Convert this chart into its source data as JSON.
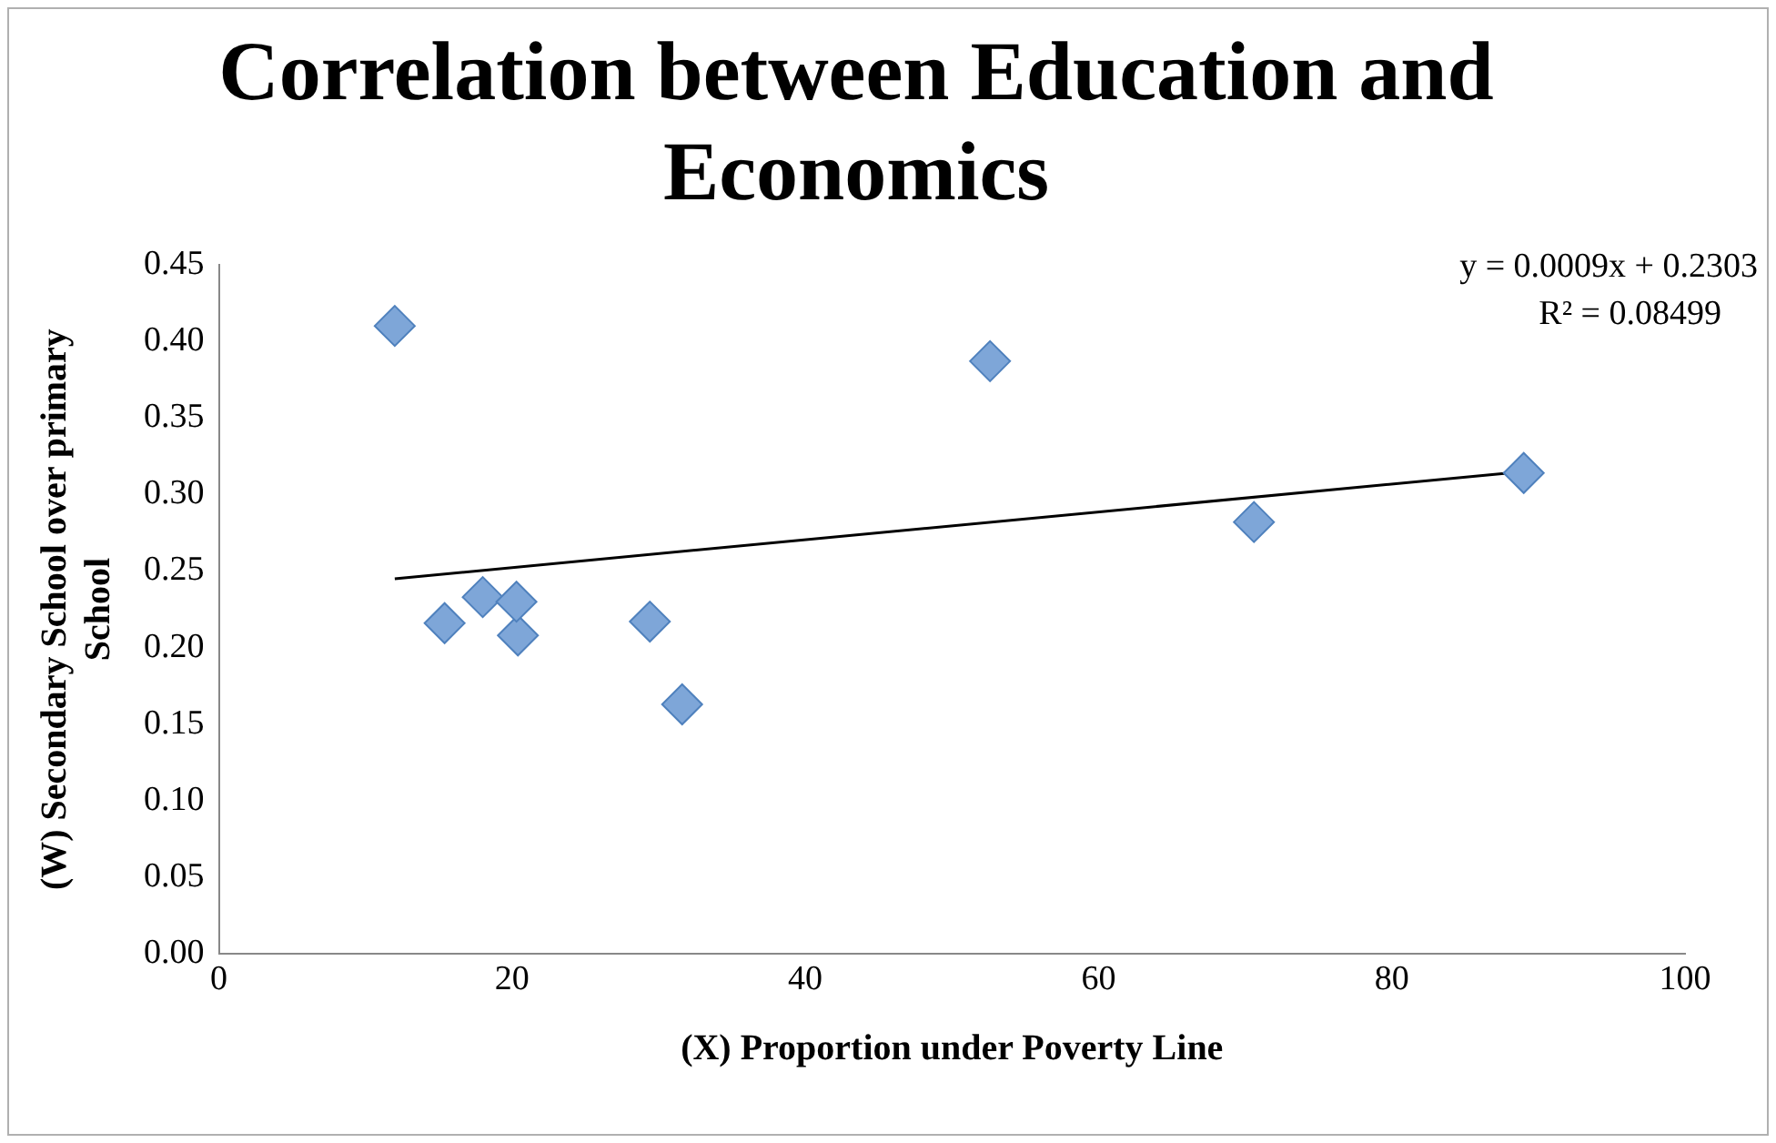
{
  "chart_data": {
    "type": "scatter",
    "title": "Correlation between Education and Economics",
    "xlabel": "(X) Proportion under Poverty Line",
    "ylabel": "(W) Secondary School over primary School",
    "xlim": [
      0,
      100
    ],
    "xticks": [
      0,
      20,
      40,
      60,
      80,
      100
    ],
    "ylim": [
      0,
      0.45
    ],
    "yticks": [
      {
        "value": 0,
        "label": "0.00"
      },
      {
        "value": 0.05,
        "label": "0.05"
      },
      {
        "value": 0.1,
        "label": "0.10"
      },
      {
        "value": 0.15,
        "label": "0.15"
      },
      {
        "value": 0.2,
        "label": "0.20"
      },
      {
        "value": 0.25,
        "label": "0.25"
      },
      {
        "value": 0.3,
        "label": "0.30"
      },
      {
        "value": 0.35,
        "label": "0.35"
      },
      {
        "value": 0.4,
        "label": "0.40"
      },
      {
        "value": 0.45,
        "label": "0.45"
      }
    ],
    "grid": false,
    "legend": false,
    "marker": "diamond",
    "series": [
      {
        "color": "#7ea6d8",
        "x": [
          12,
          15.4,
          18,
          20.4,
          20.3,
          29.4,
          31.6,
          52.6,
          70.6,
          89
        ],
        "values": [
          0.41,
          0.216,
          0.233,
          0.208,
          0.23,
          0.217,
          0.163,
          0.387,
          0.282,
          0.314
        ]
      },
      {
        "type": "line",
        "color": "#000000",
        "marker": "none",
        "x": [
          12,
          88
        ],
        "values": [
          0.245,
          0.314
        ]
      }
    ],
    "annotations": [
      "y = 0.0009x + 0.2303",
      "R² = 0.08499"
    ]
  }
}
